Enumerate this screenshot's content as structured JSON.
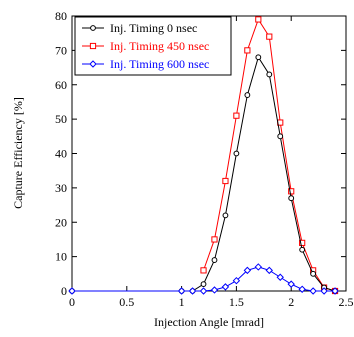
{
  "chart_data": {
    "type": "line",
    "xlabel": "Injection Angle [mrad]",
    "ylabel": "Capture Efficiency [%]",
    "xlim": [
      0,
      2.5
    ],
    "ylim": [
      0,
      80
    ],
    "xticks": [
      0,
      0.5,
      1,
      1.5,
      2,
      2.5
    ],
    "yticks": [
      0,
      10,
      20,
      30,
      40,
      50,
      60,
      70,
      80
    ],
    "grid": false,
    "legend_position": "top-left",
    "series": [
      {
        "name": "Inj. Timing 0 nsec",
        "color": "#000000",
        "marker": "circle",
        "x": [
          0,
          1.0,
          1.1,
          1.2,
          1.3,
          1.4,
          1.5,
          1.6,
          1.7,
          1.8,
          1.9,
          2.0,
          2.1,
          2.2,
          2.3,
          2.4
        ],
        "y": [
          0,
          0,
          0,
          2,
          9,
          22,
          40,
          57,
          68,
          63,
          45,
          27,
          12,
          5,
          1,
          0
        ]
      },
      {
        "name": "Inj. Timing 450 nsec",
        "color": "#ff0000",
        "marker": "square",
        "x": [
          1.2,
          1.3,
          1.4,
          1.5,
          1.6,
          1.7,
          1.8,
          1.9,
          2.0,
          2.1,
          2.2,
          2.3,
          2.4
        ],
        "y": [
          6,
          15,
          32,
          51,
          70,
          79,
          74,
          49,
          29,
          14,
          6,
          1,
          0
        ]
      },
      {
        "name": "Inj. Timing 600 nsec",
        "color": "#0000ff",
        "marker": "diamond",
        "x": [
          0,
          1.0,
          1.1,
          1.2,
          1.3,
          1.4,
          1.5,
          1.6,
          1.7,
          1.8,
          1.9,
          2.0,
          2.1,
          2.2,
          2.3,
          2.4
        ],
        "y": [
          0,
          0,
          0,
          0,
          0.3,
          1.2,
          3,
          6,
          7,
          6,
          4,
          2,
          0.5,
          0,
          0,
          0
        ]
      }
    ]
  }
}
